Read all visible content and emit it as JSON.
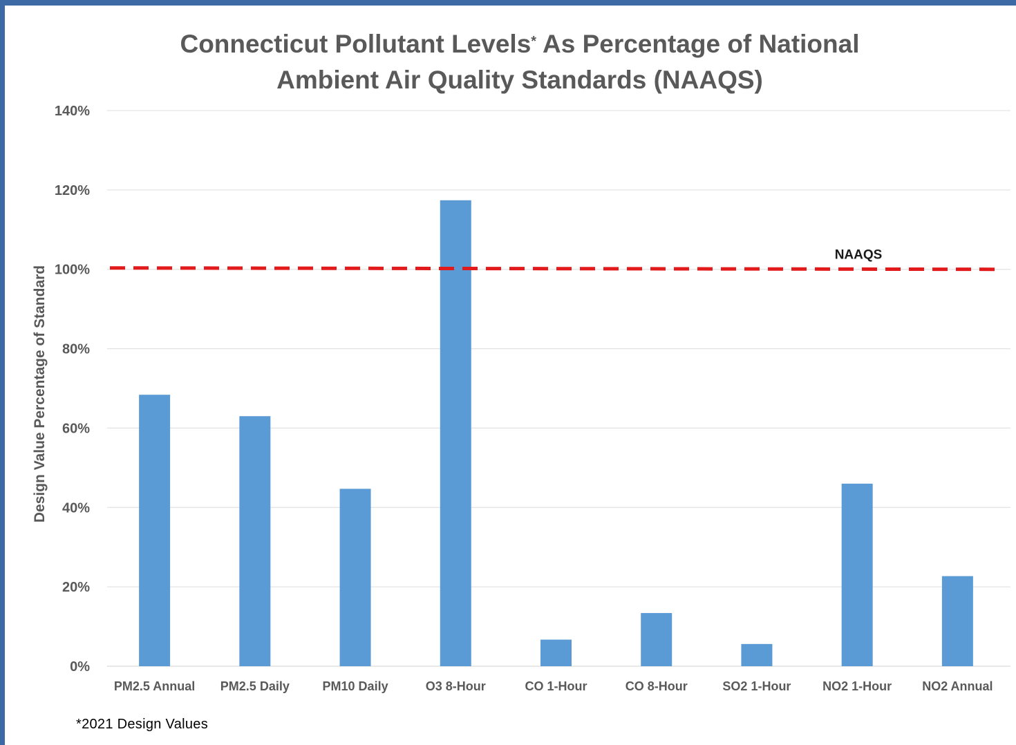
{
  "chart_data": {
    "type": "bar",
    "title_line1": "Connecticut Pollutant Levels",
    "title_sup": "*",
    "title_line1_rest": " As Percentage of National",
    "title_line2": "Ambient Air Quality Standards (NAAQS)",
    "xlabel": "",
    "ylabel": "Design Value Percentage of Standard",
    "ylim": [
      0,
      140
    ],
    "yticks": [
      0,
      20,
      40,
      60,
      80,
      100,
      120,
      140
    ],
    "ytick_labels": [
      "0%",
      "20%",
      "40%",
      "60%",
      "80%",
      "100%",
      "120%",
      "140%"
    ],
    "grid": true,
    "categories": [
      "PM2.5 Annual",
      "PM2.5 Daily",
      "PM10 Daily",
      "O3 8-Hour",
      "CO 1-Hour",
      "CO 8-Hour",
      "SO2 1-Hour",
      "NO2 1-Hour",
      "NO2 Annual"
    ],
    "values": [
      68.4,
      63,
      44.7,
      117.4,
      6.7,
      13.4,
      5.6,
      46,
      22.7
    ],
    "bar_color": "#5b9bd5",
    "reference_line": {
      "value": 100,
      "label": "NAAQS",
      "color": "#e31a1c",
      "style": "dashed"
    },
    "footnote": "*2021 Design Values"
  }
}
